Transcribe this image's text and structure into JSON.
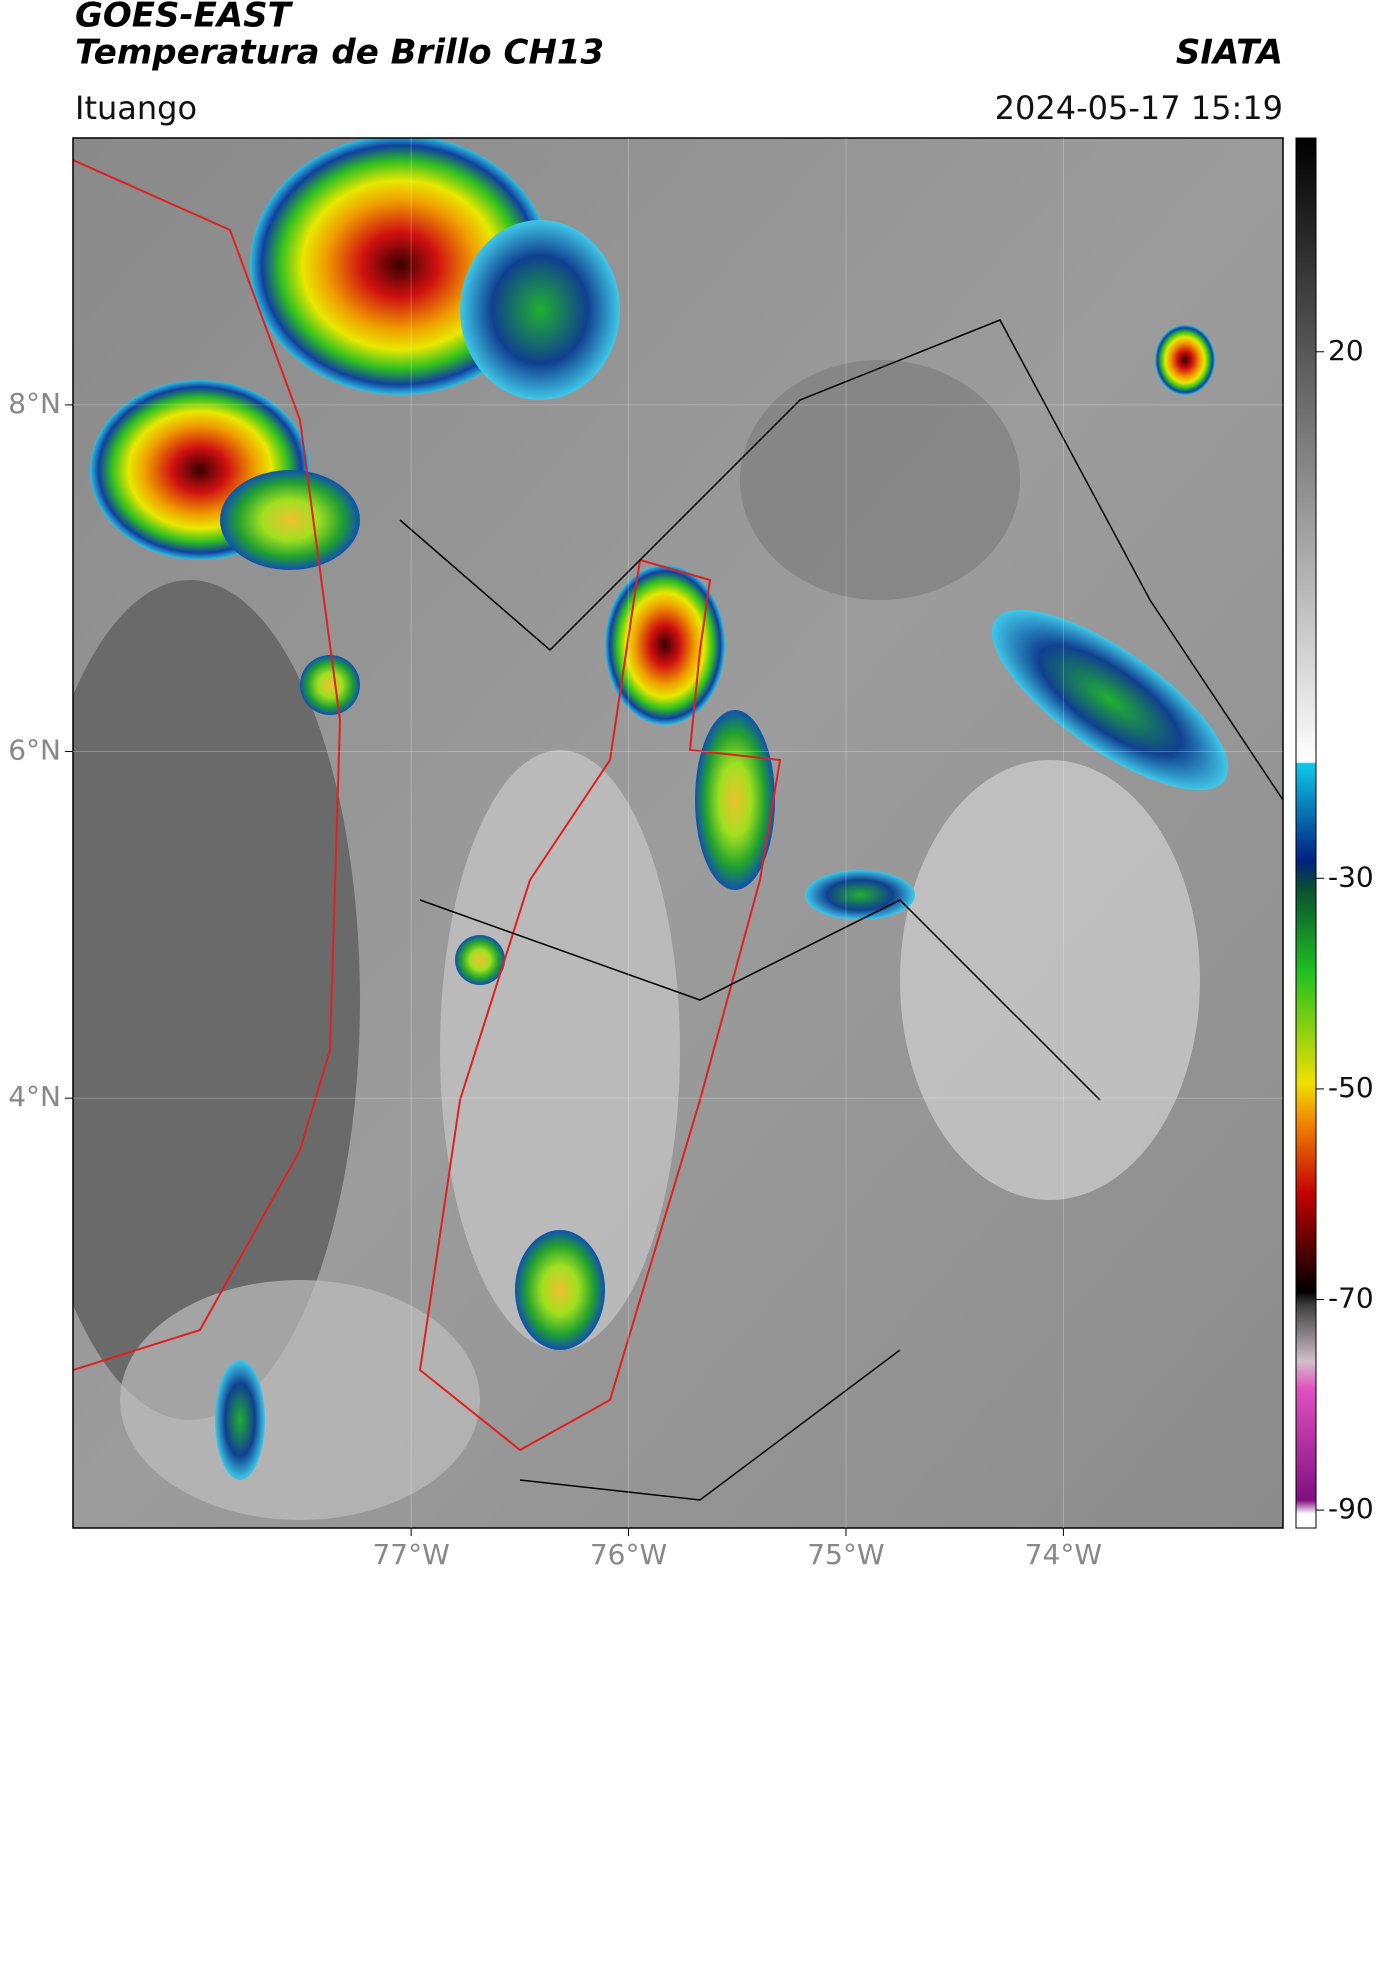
{
  "header": {
    "title": "GOES-EAST",
    "subtitle": "Temperatura de Brillo CH13",
    "source": "SIATA",
    "location": "Ituango",
    "datetime": "2024-05-17 15:19"
  },
  "map": {
    "lonlim": [
      -78.555,
      -72.99
    ],
    "latlim": [
      1.52,
      9.54
    ],
    "lonticks": [
      {
        "value": -77,
        "label": "77°W"
      },
      {
        "value": -76,
        "label": "76°W"
      },
      {
        "value": -75,
        "label": "75°W"
      },
      {
        "value": -74,
        "label": "74°W"
      }
    ],
    "latticks": [
      {
        "value": 8,
        "label": "8°N"
      },
      {
        "value": 6,
        "label": "6°N"
      },
      {
        "value": 4,
        "label": "4°N"
      }
    ]
  },
  "colorbar": {
    "lim": [
      -91.7,
      40.3
    ],
    "ticks": [
      20,
      -30,
      -50,
      -70,
      -90
    ]
  }
}
